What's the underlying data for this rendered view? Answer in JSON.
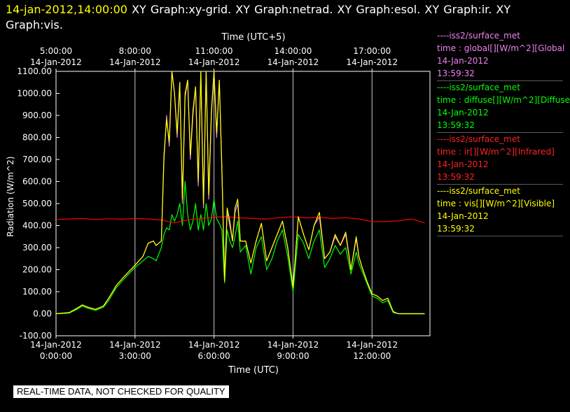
{
  "header": {
    "timestamp": "14-jan-2012,14:00:00",
    "title": " XY Graph:xy-grid.  XY Graph:netrad.  XY Graph:esol.  XY Graph:ir.  XY Graph:vis."
  },
  "footer": {
    "disclaimer": "REAL-TIME DATA, NOT CHECKED FOR QUALITY"
  },
  "legend": [
    {
      "line1": "----iss2/surface_met",
      "line2": "time : global[][W/m^2][Global",
      "line3": "14-Jan-2012",
      "line4": "13:59:32",
      "color": "#ee82ee"
    },
    {
      "line1": "----iss2/surface_met",
      "line2": "time : diffuse[][W/m^2][Diffuse",
      "line3": "14-Jan-2012",
      "line4": "13:59:32",
      "color": "#00ff00"
    },
    {
      "line1": "----iss2/surface_met",
      "line2": "time : ir[][W/m^2][Infrared]",
      "line3": "14-Jan-2012",
      "line4": "13:59:32",
      "color": "#ff0000"
    },
    {
      "line1": "----iss2/surface_met",
      "line2": "time : vis[][W/m^2][Visible]",
      "line3": "14-Jan-2012",
      "line4": "13:59:32",
      "color": "#ffff00"
    }
  ],
  "chart_data": {
    "type": "line",
    "xlabel": "Time (UTC)",
    "x2label": "Time (UTC+5)",
    "ylabel": "Radiation (W/m^2)",
    "xlim": [
      0,
      14.2
    ],
    "ylim": [
      -100,
      1100
    ],
    "grid": true,
    "x_ticks": [
      0,
      3,
      6,
      9,
      12
    ],
    "x_tick_labels": [
      [
        "14-Jan-2012",
        "0:00:00"
      ],
      [
        "14-Jan-2012",
        "3:00:00"
      ],
      [
        "14-Jan-2012",
        "6:00:00"
      ],
      [
        "14-Jan-2012",
        "9:00:00"
      ],
      [
        "14-Jan-2012",
        "12:00:00"
      ]
    ],
    "x2_tick_labels": [
      [
        "5:00:00",
        "14-Jan-2012"
      ],
      [
        "8:00:00",
        "14-Jan-2012"
      ],
      [
        "11:00:00",
        "14-Jan-2012"
      ],
      [
        "14:00:00",
        "14-Jan-2012"
      ],
      [
        "17:00:00",
        "14-Jan-2012"
      ]
    ],
    "y_ticks": [
      -100,
      0,
      100,
      200,
      300,
      400,
      500,
      600,
      700,
      800,
      900,
      1000,
      1100
    ],
    "y_tick_labels": [
      "-100.00",
      "0.00",
      "100.00",
      "200.00",
      "300.00",
      "400.00",
      "500.00",
      "600.00",
      "700.00",
      "800.00",
      "900.00",
      "1000.00",
      "1100.00"
    ],
    "series": [
      {
        "color": "#ee82ee",
        "x": [
          0,
          0.5,
          0.8,
          1.0,
          1.2,
          1.5,
          1.8,
          2.0,
          2.3,
          2.6,
          3.0,
          3.3,
          3.5,
          3.7,
          3.8,
          4.0,
          4.1,
          4.2,
          4.3,
          4.4,
          4.5,
          4.6,
          4.7,
          4.8,
          4.9,
          5.0,
          5.1,
          5.2,
          5.3,
          5.4,
          5.5,
          5.6,
          5.7,
          5.8,
          5.9,
          6.0,
          6.1,
          6.2,
          6.3,
          6.4,
          6.5,
          6.6,
          6.7,
          6.8,
          6.9,
          7.0,
          7.2,
          7.4,
          7.6,
          7.8,
          8.0,
          8.2,
          8.4,
          8.6,
          8.8,
          9.0,
          9.2,
          9.4,
          9.6,
          9.8,
          10.0,
          10.2,
          10.4,
          10.6,
          10.8,
          11.0,
          11.2,
          11.4,
          11.5,
          11.6,
          11.8,
          12.0,
          12.2,
          12.4,
          12.6,
          12.8,
          13.0,
          14.0
        ],
        "y": [
          0,
          5,
          25,
          40,
          30,
          20,
          35,
          70,
          130,
          170,
          220,
          260,
          320,
          330,
          310,
          330,
          700,
          900,
          760,
          1100,
          1000,
          800,
          1050,
          500,
          980,
          1060,
          700,
          900,
          1030,
          580,
          1100,
          480,
          1100,
          520,
          900,
          1100,
          800,
          1060,
          640,
          150,
          460,
          400,
          330,
          460,
          500,
          330,
          330,
          230,
          330,
          410,
          240,
          300,
          360,
          420,
          300,
          120,
          440,
          360,
          290,
          400,
          440,
          250,
          280,
          350,
          310,
          360,
          200,
          340,
          260,
          220,
          150,
          90,
          80,
          60,
          70,
          10,
          0,
          0
        ]
      },
      {
        "color": "#00ff00",
        "x": [
          0,
          0.5,
          0.8,
          1.0,
          1.2,
          1.5,
          1.8,
          2.0,
          2.3,
          2.6,
          3.0,
          3.3,
          3.5,
          3.7,
          3.8,
          4.0,
          4.1,
          4.2,
          4.3,
          4.4,
          4.5,
          4.6,
          4.7,
          4.8,
          4.9,
          5.0,
          5.1,
          5.2,
          5.3,
          5.4,
          5.5,
          5.6,
          5.7,
          5.8,
          5.9,
          6.0,
          6.1,
          6.2,
          6.3,
          6.4,
          6.5,
          6.6,
          6.7,
          6.8,
          6.9,
          7.0,
          7.2,
          7.4,
          7.6,
          7.8,
          8.0,
          8.2,
          8.4,
          8.6,
          8.8,
          9.0,
          9.2,
          9.4,
          9.6,
          9.8,
          10.0,
          10.2,
          10.4,
          10.6,
          10.8,
          11.0,
          11.2,
          11.4,
          11.5,
          11.6,
          11.8,
          12.0,
          12.2,
          12.4,
          12.6,
          12.8,
          13.0,
          14.0
        ],
        "y": [
          0,
          3,
          20,
          35,
          25,
          15,
          30,
          60,
          120,
          160,
          210,
          240,
          260,
          250,
          240,
          300,
          360,
          390,
          380,
          450,
          420,
          450,
          500,
          400,
          600,
          450,
          380,
          420,
          500,
          380,
          450,
          380,
          500,
          400,
          430,
          520,
          430,
          410,
          380,
          140,
          380,
          330,
          300,
          350,
          420,
          280,
          310,
          180,
          300,
          350,
          200,
          250,
          330,
          380,
          260,
          100,
          360,
          320,
          250,
          330,
          380,
          210,
          250,
          310,
          270,
          300,
          180,
          280,
          230,
          200,
          140,
          80,
          70,
          50,
          60,
          5,
          0,
          0
        ]
      },
      {
        "color": "#ff0000",
        "x": [
          0,
          0.5,
          1.0,
          1.5,
          2.0,
          2.5,
          3.0,
          3.5,
          4.0,
          4.5,
          5.0,
          5.5,
          6.0,
          6.5,
          7.0,
          7.5,
          8.0,
          8.5,
          9.0,
          9.5,
          10.0,
          10.5,
          11.0,
          11.5,
          12.0,
          12.5,
          13.0,
          13.5,
          14.0
        ],
        "y": [
          428,
          430,
          432,
          428,
          431,
          429,
          432,
          430,
          425,
          412,
          426,
          432,
          438,
          440,
          435,
          432,
          430,
          436,
          440,
          435,
          438,
          432,
          436,
          430,
          418,
          418,
          422,
          430,
          412
        ]
      },
      {
        "color": "#ffff00",
        "x": [
          0,
          0.5,
          0.8,
          1.0,
          1.2,
          1.5,
          1.8,
          2.0,
          2.3,
          2.6,
          3.0,
          3.3,
          3.5,
          3.7,
          3.8,
          4.0,
          4.1,
          4.2,
          4.3,
          4.4,
          4.5,
          4.6,
          4.7,
          4.8,
          4.9,
          5.0,
          5.1,
          5.2,
          5.3,
          5.4,
          5.5,
          5.6,
          5.7,
          5.8,
          5.9,
          6.0,
          6.1,
          6.2,
          6.3,
          6.4,
          6.5,
          6.6,
          6.7,
          6.8,
          6.9,
          7.0,
          7.2,
          7.4,
          7.6,
          7.8,
          8.0,
          8.2,
          8.4,
          8.6,
          8.8,
          9.0,
          9.2,
          9.4,
          9.6,
          9.8,
          10.0,
          10.2,
          10.4,
          10.6,
          10.8,
          11.0,
          11.2,
          11.4,
          11.5,
          11.6,
          11.8,
          12.0,
          12.2,
          12.4,
          12.6,
          12.8,
          13.0,
          14.0
        ],
        "y": [
          0,
          5,
          25,
          40,
          30,
          20,
          35,
          70,
          130,
          170,
          220,
          260,
          320,
          330,
          310,
          330,
          720,
          880,
          780,
          1100,
          1000,
          820,
          1050,
          520,
          1000,
          1060,
          720,
          920,
          1030,
          600,
          1100,
          500,
          1100,
          540,
          920,
          1100,
          820,
          1060,
          660,
          150,
          480,
          420,
          330,
          480,
          520,
          330,
          330,
          230,
          330,
          410,
          240,
          300,
          360,
          420,
          300,
          120,
          440,
          360,
          290,
          400,
          460,
          250,
          280,
          360,
          310,
          370,
          200,
          350,
          260,
          220,
          150,
          90,
          80,
          60,
          70,
          10,
          0,
          0
        ]
      }
    ]
  }
}
